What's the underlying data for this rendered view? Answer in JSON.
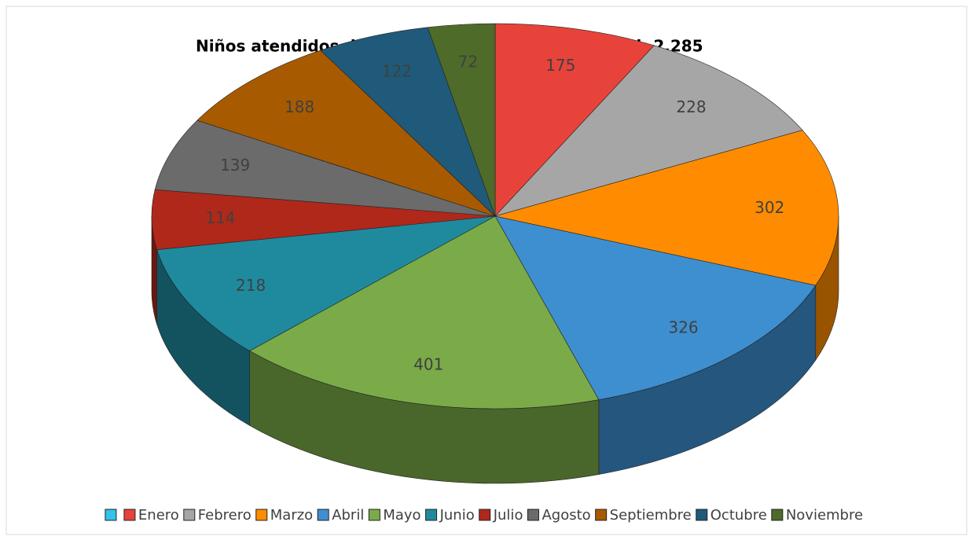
{
  "chart_data": {
    "type": "pie3d",
    "title": "Niños atendidos durante el año.",
    "annotation": "Cantidad: 2,285",
    "categories": [
      null,
      "Enero",
      "Febrero",
      "Marzo",
      "Abril",
      "Mayo",
      "Junio",
      "Julio",
      "Agosto",
      "Septiembre",
      "Octubre",
      "Noviembre"
    ],
    "values": [
      0,
      175,
      228,
      302,
      326,
      401,
      218,
      114,
      139,
      188,
      122,
      72
    ],
    "colors": [
      "#33c3e8",
      "#e8433a",
      "#a6a6a6",
      "#ff8c00",
      "#3e8fd0",
      "#7aab48",
      "#1f8a9e",
      "#b0281a",
      "#6b6b6b",
      "#a85a00",
      "#1f5a7a",
      "#4e6b2a"
    ],
    "legend": "bottom"
  }
}
